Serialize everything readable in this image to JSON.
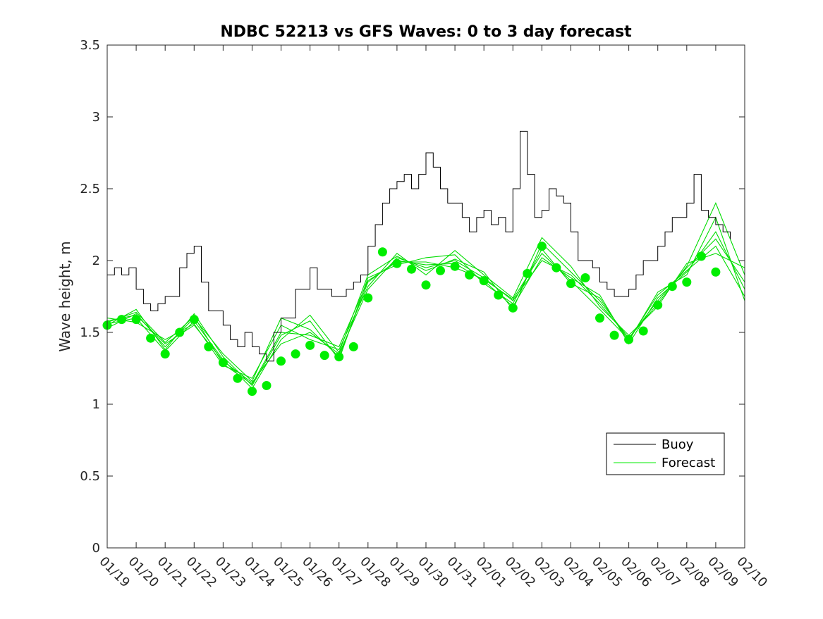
{
  "chart_data": {
    "type": "line",
    "title": "NDBC 52213 vs GFS Waves: 0 to 3 day forecast",
    "xlabel": "",
    "ylabel": "Wave height, m",
    "ylim": [
      0,
      3.5
    ],
    "xlim_days": [
      0,
      22
    ],
    "y_ticks": [
      0,
      0.5,
      1,
      1.5,
      2,
      2.5,
      3,
      3.5
    ],
    "y_tick_labels": [
      "0",
      "0.5",
      "1",
      "1.5",
      "2",
      "2.5",
      "3",
      "3.5"
    ],
    "x_tick_labels": [
      "01/19",
      "01/20",
      "01/21",
      "01/22",
      "01/23",
      "01/24",
      "01/25",
      "01/26",
      "01/27",
      "01/28",
      "01/29",
      "01/30",
      "01/31",
      "02/01",
      "02/02",
      "02/03",
      "02/04",
      "02/05",
      "02/06",
      "02/07",
      "02/08",
      "02/09",
      "02/10"
    ],
    "legend": {
      "location": "lower-right",
      "entries": [
        {
          "label": "Buoy",
          "color": "#000000"
        },
        {
          "label": "Forecast",
          "color": "#00ee00"
        }
      ]
    },
    "colors": {
      "buoy": "#000000",
      "forecast": "#00dd00",
      "analysis_points": "#00ee00"
    },
    "series": [
      {
        "name": "Buoy",
        "x": [
          0,
          0.25,
          0.5,
          0.75,
          1,
          1.25,
          1.5,
          1.75,
          2,
          2.25,
          2.5,
          2.75,
          3,
          3.25,
          3.5,
          3.75,
          4,
          4.25,
          4.5,
          4.75,
          5,
          5.25,
          5.5,
          5.75,
          6,
          6.25,
          6.5,
          6.75,
          7,
          7.25,
          7.5,
          7.75,
          8,
          8.25,
          8.5,
          8.75,
          9,
          9.25,
          9.5,
          9.75,
          10,
          10.25,
          10.5,
          10.75,
          11,
          11.25,
          11.5,
          11.75,
          12,
          12.25,
          12.5,
          12.75,
          13,
          13.25,
          13.5,
          13.75,
          14,
          14.25,
          14.5,
          14.75,
          15,
          15.25,
          15.5,
          15.75,
          16,
          16.25,
          16.5,
          16.75,
          17,
          17.25,
          17.5,
          17.75,
          18,
          18.25,
          18.5,
          18.75,
          19,
          19.25,
          19.5,
          19.75,
          20,
          20.25,
          20.5,
          20.75,
          21,
          21.25,
          21.5
        ],
        "values": [
          1.9,
          1.95,
          1.9,
          1.95,
          1.8,
          1.7,
          1.65,
          1.7,
          1.75,
          1.75,
          1.95,
          2.05,
          2.1,
          1.85,
          1.65,
          1.65,
          1.55,
          1.45,
          1.4,
          1.5,
          1.4,
          1.35,
          1.3,
          1.5,
          1.6,
          1.6,
          1.8,
          1.8,
          1.95,
          1.8,
          1.8,
          1.75,
          1.75,
          1.8,
          1.85,
          1.9,
          2.1,
          2.25,
          2.4,
          2.5,
          2.55,
          2.6,
          2.5,
          2.6,
          2.75,
          2.65,
          2.5,
          2.4,
          2.4,
          2.3,
          2.2,
          2.3,
          2.35,
          2.25,
          2.3,
          2.2,
          2.5,
          2.9,
          2.6,
          2.3,
          2.35,
          2.5,
          2.45,
          2.4,
          2.2,
          2.0,
          2.0,
          1.95,
          1.85,
          1.8,
          1.75,
          1.75,
          1.8,
          1.9,
          2.0,
          2.0,
          2.1,
          2.2,
          2.3,
          2.3,
          2.4,
          2.6,
          2.35,
          2.3,
          2.25,
          2.2,
          2.15
        ]
      },
      {
        "name": "Forecast (analysis points)",
        "x": [
          0,
          0.5,
          1,
          1.5,
          2,
          2.5,
          3,
          3.5,
          4,
          4.5,
          5,
          5.5,
          6,
          6.5,
          7,
          7.5,
          8,
          8.5,
          9,
          9.5,
          10,
          10.5,
          11,
          11.5,
          12,
          12.5,
          13,
          13.5,
          14,
          14.5,
          15,
          15.5,
          16,
          16.5,
          17,
          17.5,
          18,
          18.5,
          19,
          19.5,
          20,
          20.5,
          21
        ],
        "values": [
          1.55,
          1.59,
          1.59,
          1.46,
          1.35,
          1.5,
          1.59,
          1.4,
          1.29,
          1.18,
          1.09,
          1.13,
          1.3,
          1.35,
          1.41,
          1.34,
          1.33,
          1.4,
          1.74,
          2.06,
          1.98,
          1.94,
          1.83,
          1.93,
          1.96,
          1.9,
          1.86,
          1.76,
          1.67,
          1.91,
          2.1,
          1.95,
          1.84,
          1.88,
          1.6,
          1.48,
          1.45,
          1.51,
          1.69,
          1.82,
          1.85,
          2.03,
          1.92
        ]
      },
      {
        "name": "Forecast",
        "x": [
          0,
          1,
          2,
          3,
          4,
          5,
          6,
          7,
          8,
          9,
          10,
          11,
          12,
          13,
          14,
          15,
          16,
          17,
          18,
          19,
          20,
          21,
          22
        ],
        "values": [
          1.58,
          1.62,
          1.42,
          1.55,
          1.3,
          1.15,
          1.42,
          1.5,
          1.35,
          1.8,
          2.02,
          1.95,
          2.0,
          1.88,
          1.72,
          2.0,
          1.9,
          1.7,
          1.46,
          1.72,
          1.95,
          2.15,
          1.85
        ]
      },
      {
        "name": "Forecast",
        "x": [
          0,
          1,
          2,
          3,
          4,
          5,
          6,
          7,
          8,
          9,
          10,
          11,
          12,
          13,
          14,
          15,
          16,
          17,
          18,
          19,
          20,
          21,
          22
        ],
        "values": [
          1.55,
          1.66,
          1.38,
          1.63,
          1.33,
          1.13,
          1.48,
          1.58,
          1.31,
          1.88,
          1.97,
          2.02,
          2.04,
          1.84,
          1.7,
          2.08,
          1.84,
          1.74,
          1.44,
          1.78,
          1.9,
          2.3,
          1.72
        ]
      },
      {
        "name": "Forecast",
        "x": [
          0,
          1,
          2,
          3,
          4,
          5,
          6,
          7,
          8,
          9,
          10,
          11,
          12,
          13,
          14,
          15,
          16,
          17,
          18,
          19,
          20,
          21,
          22
        ],
        "values": [
          1.6,
          1.57,
          1.45,
          1.56,
          1.27,
          1.18,
          1.55,
          1.45,
          1.38,
          1.82,
          2.05,
          1.9,
          2.07,
          1.9,
          1.74,
          2.16,
          1.96,
          1.68,
          1.48,
          1.68,
          1.98,
          2.05,
          1.95
        ]
      },
      {
        "name": "Forecast",
        "x": [
          0,
          1,
          2,
          3,
          4,
          5,
          6,
          7,
          8,
          9,
          10,
          11,
          12,
          13,
          14,
          15,
          16,
          17,
          18,
          19,
          20,
          21,
          22
        ],
        "values": [
          1.53,
          1.63,
          1.4,
          1.6,
          1.35,
          1.16,
          1.6,
          1.52,
          1.33,
          1.85,
          2.0,
          1.97,
          1.98,
          1.86,
          1.68,
          2.02,
          1.88,
          1.76,
          1.42,
          1.74,
          1.92,
          2.2,
          1.8
        ]
      },
      {
        "name": "Forecast",
        "x": [
          0,
          1,
          2,
          3,
          4,
          5,
          6,
          7,
          8,
          9,
          10,
          11,
          12,
          13,
          14,
          15,
          16,
          17,
          18,
          19,
          20,
          21,
          22
        ],
        "values": [
          1.56,
          1.6,
          1.37,
          1.58,
          1.31,
          1.11,
          1.45,
          1.62,
          1.36,
          1.9,
          2.03,
          1.93,
          2.01,
          1.92,
          1.66,
          2.12,
          1.92,
          1.72,
          1.46,
          1.7,
          1.96,
          2.4,
          1.9
        ]
      },
      {
        "name": "Forecast",
        "x": [
          0,
          1,
          2,
          3,
          4,
          5,
          6,
          7,
          8,
          9,
          10,
          11,
          12,
          13,
          14,
          15,
          16,
          17,
          18,
          19,
          20,
          21,
          22
        ],
        "values": [
          1.57,
          1.64,
          1.43,
          1.61,
          1.28,
          1.14,
          1.5,
          1.48,
          1.4,
          1.86,
          1.99,
          1.99,
          1.95,
          1.87,
          1.73,
          2.05,
          1.86,
          1.66,
          1.45,
          1.76,
          1.93,
          2.1,
          1.75
        ]
      }
    ]
  }
}
